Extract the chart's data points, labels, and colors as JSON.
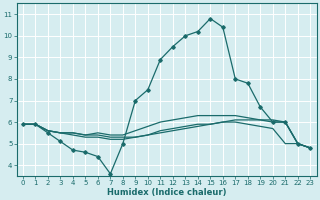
{
  "xlabel": "Humidex (Indice chaleur)",
  "bg_color": "#d6edf0",
  "grid_color": "#ffffff",
  "line_color": "#1a6b6b",
  "xlim": [
    -0.5,
    23.5
  ],
  "ylim": [
    3.5,
    11.5
  ],
  "yticks": [
    4,
    5,
    6,
    7,
    8,
    9,
    10,
    11
  ],
  "xticks": [
    0,
    1,
    2,
    3,
    4,
    5,
    6,
    7,
    8,
    9,
    10,
    11,
    12,
    13,
    14,
    15,
    16,
    17,
    18,
    19,
    20,
    21,
    22,
    23
  ],
  "line1_x": [
    0,
    1,
    2,
    3,
    4,
    5,
    6,
    7,
    8,
    9,
    10,
    11,
    12,
    13,
    14,
    15,
    16,
    17,
    18,
    19,
    20,
    21,
    22,
    23
  ],
  "line1_y": [
    5.9,
    5.9,
    5.5,
    5.1,
    4.7,
    4.6,
    4.4,
    3.6,
    5.0,
    7.0,
    7.5,
    8.9,
    9.5,
    10.0,
    10.2,
    10.8,
    10.4,
    8.0,
    7.8,
    6.7,
    6.0,
    6.0,
    5.0,
    4.8
  ],
  "line2_x": [
    0,
    1,
    2,
    3,
    4,
    5,
    6,
    7,
    8,
    9,
    10,
    11,
    12,
    13,
    14,
    15,
    16,
    17,
    18,
    19,
    20,
    21,
    22,
    23
  ],
  "line2_y": [
    5.9,
    5.9,
    5.6,
    5.5,
    5.5,
    5.4,
    5.4,
    5.3,
    5.3,
    5.3,
    5.4,
    5.5,
    5.6,
    5.7,
    5.8,
    5.9,
    6.0,
    6.1,
    6.1,
    6.1,
    6.1,
    6.0,
    5.0,
    4.8
  ],
  "line3_x": [
    0,
    1,
    2,
    3,
    4,
    5,
    6,
    7,
    8,
    9,
    10,
    11,
    12,
    13,
    14,
    15,
    16,
    17,
    18,
    19,
    20,
    21,
    22,
    23
  ],
  "line3_y": [
    5.9,
    5.9,
    5.6,
    5.5,
    5.5,
    5.4,
    5.5,
    5.4,
    5.4,
    5.6,
    5.8,
    6.0,
    6.1,
    6.2,
    6.3,
    6.3,
    6.3,
    6.3,
    6.2,
    6.1,
    6.0,
    6.0,
    5.0,
    4.8
  ],
  "line4_x": [
    0,
    1,
    2,
    3,
    4,
    5,
    6,
    7,
    8,
    9,
    10,
    11,
    12,
    13,
    14,
    15,
    16,
    17,
    18,
    19,
    20,
    21,
    22,
    23
  ],
  "line4_y": [
    5.9,
    5.9,
    5.6,
    5.5,
    5.4,
    5.3,
    5.3,
    5.2,
    5.2,
    5.3,
    5.4,
    5.6,
    5.7,
    5.8,
    5.9,
    5.9,
    6.0,
    6.0,
    5.9,
    5.8,
    5.7,
    5.0,
    5.0,
    4.8
  ],
  "tick_fontsize": 5.0,
  "xlabel_fontsize": 6.0
}
